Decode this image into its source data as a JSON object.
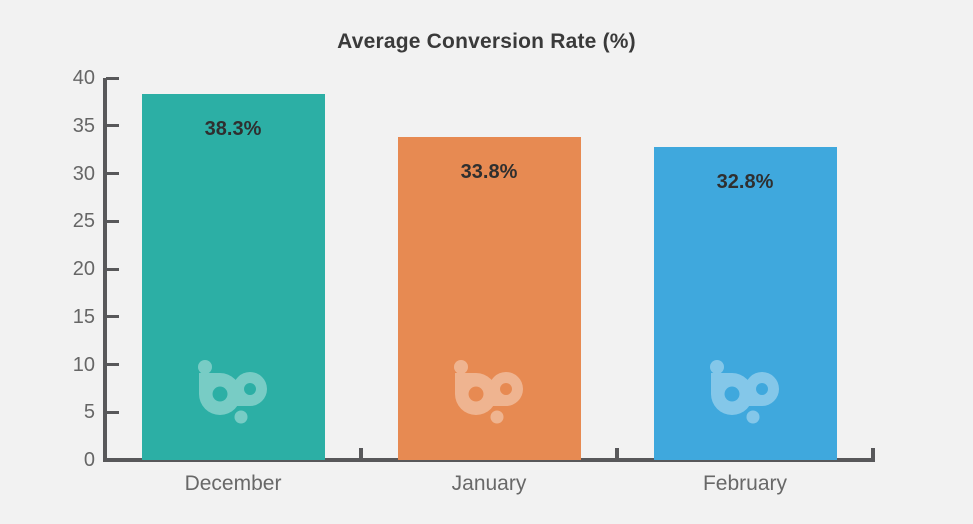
{
  "page": {
    "background_color": "#f2f2f2"
  },
  "chart_data": {
    "type": "bar",
    "title": "Average Conversion Rate (%)",
    "categories": [
      "December",
      "January",
      "February"
    ],
    "values": [
      38.3,
      33.8,
      32.8
    ],
    "value_labels": [
      "38.3%",
      "33.8%",
      "32.8%"
    ],
    "bar_colors": [
      "#2cafa5",
      "#e78a52",
      "#3fa8dd"
    ],
    "xlabel": "",
    "ylabel": "",
    "ylim": [
      0,
      40
    ],
    "yticks": [
      0,
      5,
      10,
      15,
      20,
      25,
      30,
      35,
      40
    ],
    "grid": false,
    "legend_position": "none",
    "watermark_icon": "bp-logo",
    "axis_color": "#58585a",
    "title_color": "#3a3a3a",
    "tick_label_color": "#666666",
    "value_label_color": "#2f2f2f"
  }
}
